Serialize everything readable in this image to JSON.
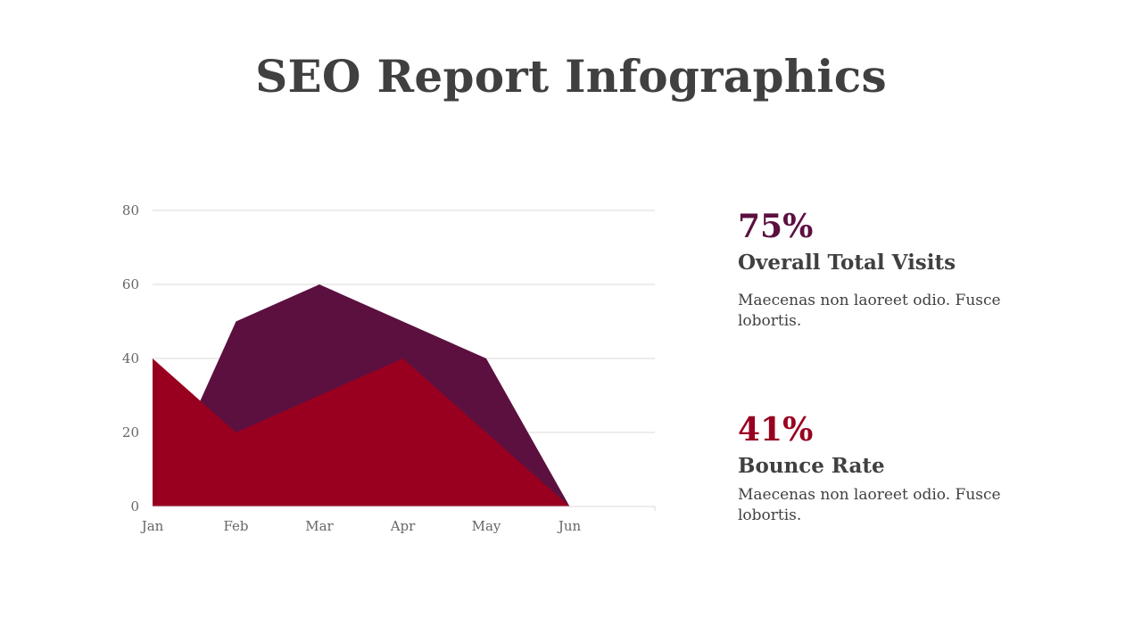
{
  "title": "SEO Report Infographics",
  "chart_data": {
    "type": "area",
    "categories": [
      "Jan",
      "Feb",
      "Mar",
      "Apr",
      "May",
      "Jun"
    ],
    "ylim": [
      0,
      80
    ],
    "yticks": [
      0,
      20,
      40,
      60,
      80
    ],
    "grid": true,
    "series": [
      {
        "color": "#5c1040",
        "values": [
          0,
          50,
          60,
          50,
          40,
          0
        ]
      },
      {
        "color": "#990020",
        "values": [
          40,
          20,
          30,
          40,
          20,
          0
        ]
      }
    ]
  },
  "stats": [
    {
      "value": "75%",
      "value_color": "#5c1040",
      "heading": "Overall Total Visits",
      "text": "Maecenas non laoreet odio. Fusce lobortis."
    },
    {
      "value": "41%",
      "value_color": "#990020",
      "heading": "Bounce Rate",
      "text": "Maecenas non laoreet odio. Fusce lobortis."
    }
  ]
}
